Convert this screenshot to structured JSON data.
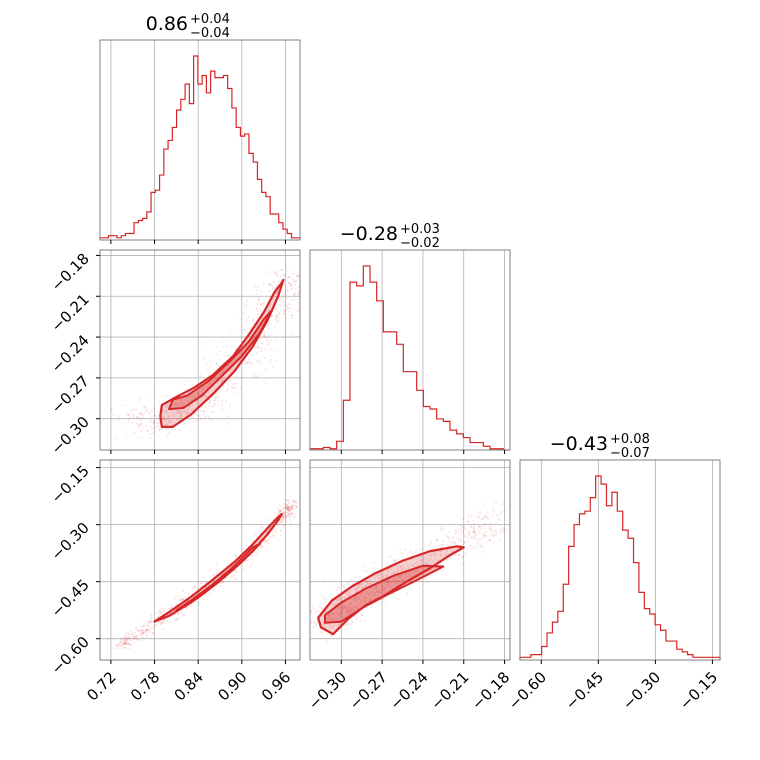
{
  "chart_data": {
    "type": "corner",
    "color": "#d62728",
    "parameters": [
      {
        "title": "0.86",
        "upper": "+0.04",
        "lower": "−0.04",
        "range": [
          0.705,
          0.98
        ],
        "ticks": [
          "0.72",
          "0.78",
          "0.84",
          "0.90",
          "0.96"
        ],
        "tick_values": [
          0.72,
          0.78,
          0.84,
          0.9,
          0.96
        ],
        "hist_counts": [
          1,
          1,
          2,
          2,
          1,
          2,
          3,
          3,
          8,
          9,
          10,
          13,
          22,
          23,
          30,
          42,
          46,
          52,
          60,
          65,
          72,
          63,
          85,
          72,
          76,
          68,
          78,
          75,
          75,
          76,
          70,
          61,
          52,
          48,
          49,
          40,
          36,
          28,
          22,
          20,
          12,
          12,
          8,
          5,
          3,
          1,
          1
        ]
      },
      {
        "title": "−0.28",
        "upper": "+0.03",
        "lower": "−0.02",
        "range": [
          -0.323,
          -0.176
        ],
        "ticks": [
          "−0.30",
          "−0.27",
          "−0.24",
          "−0.21",
          "−0.18"
        ],
        "tick_values": [
          -0.3,
          -0.27,
          -0.24,
          -0.21,
          -0.18
        ],
        "hist_counts": [
          1,
          1,
          2,
          1,
          7,
          40,
          135,
          132,
          148,
          135,
          120,
          95,
          95,
          85,
          63,
          63,
          48,
          35,
          33,
          25,
          23,
          16,
          13,
          10,
          6,
          6,
          3,
          1,
          1,
          0
        ]
      },
      {
        "title": "−0.43",
        "upper": "+0.08",
        "lower": "−0.07",
        "range": [
          -0.656,
          -0.13
        ],
        "ticks": [
          "−0.60",
          "−0.45",
          "−0.30",
          "−0.15"
        ],
        "tick_values": [
          -0.6,
          -0.45,
          -0.3,
          -0.15
        ],
        "hist_counts": [
          1,
          1,
          2,
          2,
          5,
          10,
          14,
          18,
          28,
          42,
          50,
          54,
          55,
          60,
          68,
          65,
          57,
          62,
          55,
          48,
          45,
          36,
          25,
          19,
          17,
          13,
          11,
          7,
          7,
          4,
          3,
          2,
          1,
          1,
          1,
          1,
          1
        ]
      }
    ],
    "pairs": [
      {
        "x_param": 0,
        "y_param": 1,
        "x_range": [
          0.705,
          0.98
        ],
        "y_range": [
          -0.323,
          -0.176
        ],
        "y_ticks": [
          "−0.18",
          "−0.21",
          "−0.24",
          "−0.27",
          "−0.30"
        ],
        "y_tick_values": [
          -0.18,
          -0.21,
          -0.24,
          -0.27,
          -0.3
        ],
        "outer_contour": [
          [
            0.788,
            -0.298
          ],
          [
            0.79,
            -0.306
          ],
          [
            0.805,
            -0.306
          ],
          [
            0.83,
            -0.297
          ],
          [
            0.86,
            -0.282
          ],
          [
            0.89,
            -0.265
          ],
          [
            0.915,
            -0.247
          ],
          [
            0.935,
            -0.228
          ],
          [
            0.95,
            -0.21
          ],
          [
            0.957,
            -0.198
          ],
          [
            0.955,
            -0.2
          ],
          [
            0.945,
            -0.207
          ],
          [
            0.93,
            -0.222
          ],
          [
            0.91,
            -0.238
          ],
          [
            0.888,
            -0.254
          ],
          [
            0.86,
            -0.268
          ],
          [
            0.835,
            -0.277
          ],
          [
            0.81,
            -0.284
          ],
          [
            0.79,
            -0.29
          ]
        ],
        "inner_contour": [
          [
            0.8,
            -0.293
          ],
          [
            0.82,
            -0.292
          ],
          [
            0.845,
            -0.283
          ],
          [
            0.87,
            -0.27
          ],
          [
            0.9,
            -0.254
          ],
          [
            0.925,
            -0.237
          ],
          [
            0.94,
            -0.221
          ],
          [
            0.93,
            -0.227
          ],
          [
            0.91,
            -0.243
          ],
          [
            0.885,
            -0.257
          ],
          [
            0.855,
            -0.272
          ],
          [
            0.825,
            -0.283
          ],
          [
            0.805,
            -0.286
          ]
        ],
        "samples_center": [
          [
            0.75,
            -0.3
          ],
          [
            0.8,
            -0.3
          ],
          [
            0.85,
            -0.285
          ],
          [
            0.9,
            -0.258
          ],
          [
            0.94,
            -0.222
          ],
          [
            0.965,
            -0.195
          ]
        ],
        "samples_spread": [
          0.018,
          0.006
        ]
      },
      {
        "x_param": 0,
        "y_param": 2,
        "x_range": [
          0.705,
          0.98
        ],
        "y_range": [
          -0.656,
          -0.13
        ],
        "y_ticks": [
          "−0.15",
          "−0.30",
          "−0.45",
          "−0.60"
        ],
        "y_tick_values": [
          -0.15,
          -0.3,
          -0.45,
          -0.6
        ],
        "outer_contour": [
          [
            0.78,
            -0.555
          ],
          [
            0.8,
            -0.54
          ],
          [
            0.83,
            -0.505
          ],
          [
            0.86,
            -0.462
          ],
          [
            0.89,
            -0.415
          ],
          [
            0.915,
            -0.37
          ],
          [
            0.935,
            -0.326
          ],
          [
            0.95,
            -0.288
          ],
          [
            0.955,
            -0.272
          ],
          [
            0.95,
            -0.28
          ],
          [
            0.935,
            -0.31
          ],
          [
            0.915,
            -0.352
          ],
          [
            0.89,
            -0.398
          ],
          [
            0.86,
            -0.445
          ],
          [
            0.83,
            -0.49
          ],
          [
            0.8,
            -0.53
          ]
        ],
        "inner_contour": [
          [
            0.81,
            -0.525
          ],
          [
            0.84,
            -0.492
          ],
          [
            0.87,
            -0.448
          ],
          [
            0.9,
            -0.398
          ],
          [
            0.925,
            -0.35
          ],
          [
            0.915,
            -0.36
          ],
          [
            0.89,
            -0.408
          ],
          [
            0.86,
            -0.457
          ],
          [
            0.83,
            -0.5
          ]
        ],
        "samples_center": [
          [
            0.73,
            -0.62
          ],
          [
            0.78,
            -0.56
          ],
          [
            0.84,
            -0.485
          ],
          [
            0.9,
            -0.395
          ],
          [
            0.95,
            -0.29
          ],
          [
            0.97,
            -0.245
          ]
        ],
        "samples_spread": [
          0.006,
          0.01
        ]
      },
      {
        "x_param": 1,
        "y_param": 2,
        "x_range": [
          -0.323,
          -0.176
        ],
        "y_range": [
          -0.656,
          -0.13
        ],
        "outer_contour": [
          [
            -0.317,
            -0.545
          ],
          [
            -0.315,
            -0.57
          ],
          [
            -0.306,
            -0.588
          ],
          [
            -0.295,
            -0.548
          ],
          [
            -0.282,
            -0.512
          ],
          [
            -0.27,
            -0.49
          ],
          [
            -0.252,
            -0.45
          ],
          [
            -0.235,
            -0.415
          ],
          [
            -0.22,
            -0.38
          ],
          [
            -0.21,
            -0.36
          ],
          [
            -0.215,
            -0.357
          ],
          [
            -0.235,
            -0.37
          ],
          [
            -0.255,
            -0.395
          ],
          [
            -0.275,
            -0.428
          ],
          [
            -0.292,
            -0.462
          ],
          [
            -0.307,
            -0.5
          ]
        ],
        "inner_contour": [
          [
            -0.312,
            -0.538
          ],
          [
            -0.312,
            -0.558
          ],
          [
            -0.3,
            -0.555
          ],
          [
            -0.285,
            -0.52
          ],
          [
            -0.265,
            -0.482
          ],
          [
            -0.245,
            -0.447
          ],
          [
            -0.225,
            -0.41
          ],
          [
            -0.24,
            -0.408
          ],
          [
            -0.262,
            -0.435
          ],
          [
            -0.282,
            -0.468
          ],
          [
            -0.3,
            -0.505
          ]
        ],
        "samples_center": [
          [
            -0.315,
            -0.56
          ],
          [
            -0.3,
            -0.52
          ],
          [
            -0.28,
            -0.47
          ],
          [
            -0.26,
            -0.43
          ],
          [
            -0.23,
            -0.38
          ],
          [
            -0.205,
            -0.33
          ],
          [
            -0.185,
            -0.28
          ]
        ],
        "samples_spread": [
          0.006,
          0.025
        ]
      }
    ],
    "grid": true
  }
}
